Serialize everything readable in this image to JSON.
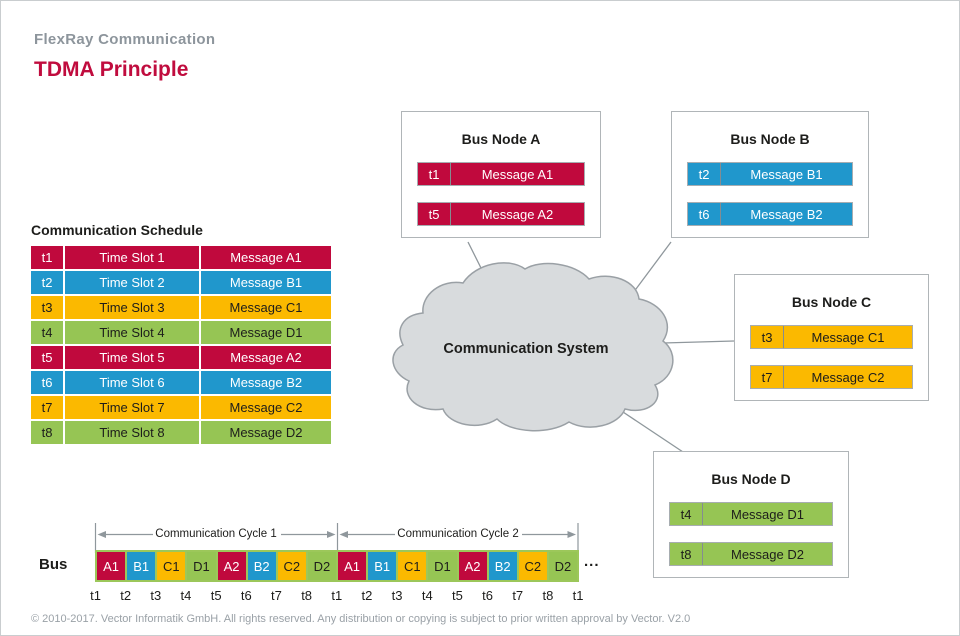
{
  "header": {
    "subtitle": "FlexRay Communication",
    "title": "TDMA Principle"
  },
  "palette": {
    "red": {
      "bg": "#c0093d",
      "fg": "#ffffff"
    },
    "blue": {
      "bg": "#2097cc",
      "fg": "#ffffff"
    },
    "yellow": {
      "bg": "#fbb900",
      "fg": "#1d1d1b"
    },
    "green": {
      "bg": "#96c554",
      "fg": "#1d1d1b"
    }
  },
  "schedule": {
    "title": "Communication Schedule",
    "rows": [
      {
        "t": "t1",
        "slot": "Time Slot 1",
        "message": "Message A1",
        "color": "red"
      },
      {
        "t": "t2",
        "slot": "Time Slot 2",
        "message": "Message B1",
        "color": "blue"
      },
      {
        "t": "t3",
        "slot": "Time Slot 3",
        "message": "Message C1",
        "color": "yellow"
      },
      {
        "t": "t4",
        "slot": "Time Slot 4",
        "message": "Message D1",
        "color": "green"
      },
      {
        "t": "t5",
        "slot": "Time Slot 5",
        "message": "Message A2",
        "color": "red"
      },
      {
        "t": "t6",
        "slot": "Time Slot 6",
        "message": "Message B2",
        "color": "blue"
      },
      {
        "t": "t7",
        "slot": "Time Slot 7",
        "message": "Message C2",
        "color": "yellow"
      },
      {
        "t": "t8",
        "slot": "Time Slot 8",
        "message": "Message D2",
        "color": "green"
      }
    ]
  },
  "nodes": [
    {
      "title": "Bus Node A",
      "color": "red",
      "rows": [
        {
          "t": "t1",
          "message": "Message A1"
        },
        {
          "t": "t5",
          "message": "Message A2"
        }
      ]
    },
    {
      "title": "Bus Node B",
      "color": "blue",
      "rows": [
        {
          "t": "t2",
          "message": "Message B1"
        },
        {
          "t": "t6",
          "message": "Message B2"
        }
      ]
    },
    {
      "title": "Bus Node C",
      "color": "yellow",
      "rows": [
        {
          "t": "t3",
          "message": "Message C1"
        },
        {
          "t": "t7",
          "message": "Message C2"
        }
      ]
    },
    {
      "title": "Bus Node D",
      "color": "green",
      "rows": [
        {
          "t": "t4",
          "message": "Message D1"
        },
        {
          "t": "t8",
          "message": "Message D2"
        }
      ]
    }
  ],
  "cloud": {
    "label": "Communication System"
  },
  "bus": {
    "label": "Bus",
    "cycles": [
      "Communication Cycle 1",
      "Communication Cycle 2"
    ],
    "slots": [
      {
        "label": "A1",
        "color": "red"
      },
      {
        "label": "B1",
        "color": "blue"
      },
      {
        "label": "C1",
        "color": "yellow"
      },
      {
        "label": "D1",
        "color": "green"
      },
      {
        "label": "A2",
        "color": "red"
      },
      {
        "label": "B2",
        "color": "blue"
      },
      {
        "label": "C2",
        "color": "yellow"
      },
      {
        "label": "D2",
        "color": "green"
      },
      {
        "label": "A1",
        "color": "red"
      },
      {
        "label": "B1",
        "color": "blue"
      },
      {
        "label": "C1",
        "color": "yellow"
      },
      {
        "label": "D1",
        "color": "green"
      },
      {
        "label": "A2",
        "color": "red"
      },
      {
        "label": "B2",
        "color": "blue"
      },
      {
        "label": "C2",
        "color": "yellow"
      },
      {
        "label": "D2",
        "color": "green"
      }
    ],
    "ellipsis": "...",
    "tick_labels": [
      "t1",
      "t2",
      "t3",
      "t4",
      "t5",
      "t6",
      "t7",
      "t8",
      "t1",
      "t2",
      "t3",
      "t4",
      "t5",
      "t6",
      "t7",
      "t8",
      "t1"
    ]
  },
  "footer": {
    "copyright": "© 2010-2017. Vector Informatik GmbH. All rights reserved. Any distribution or copying is subject to prior written approval by Vector. V2.0"
  }
}
